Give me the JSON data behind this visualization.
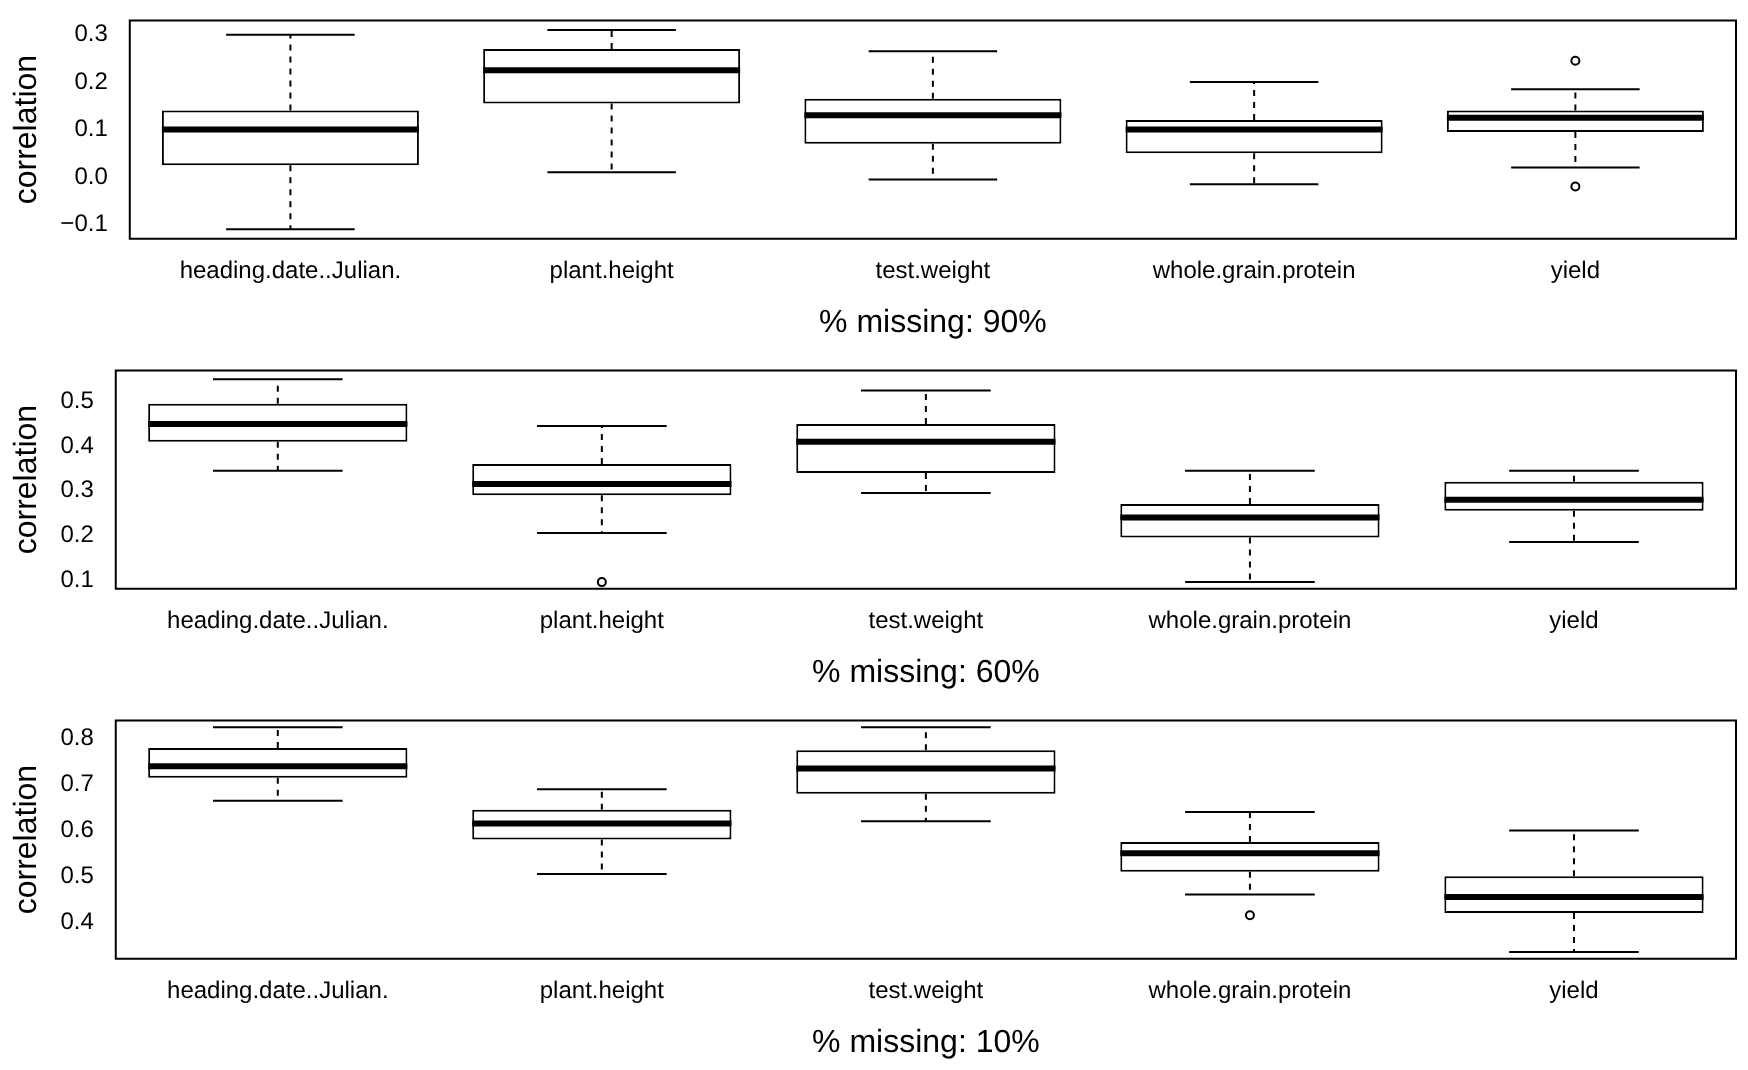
{
  "chart_data": [
    {
      "type": "box",
      "ylabel": "correlation",
      "xlabel": "% missing: 90%",
      "categories": [
        "heading.date..Julian.",
        "plant.height",
        "test.weight",
        "whole.grain.protein",
        "yield"
      ],
      "ylim": [
        -0.13,
        0.33
      ],
      "yticks": [
        {
          "value": -0.1,
          "label": "−0.1"
        },
        {
          "value": 0,
          "label": "0.0"
        },
        0.1,
        0.2,
        0.3
      ],
      "grid": false,
      "legend": false,
      "boxes": [
        {
          "low": -0.11,
          "q1": 0.025,
          "median": 0.1,
          "q3": 0.14,
          "high": 0.3
        },
        {
          "low": 0.01,
          "q1": 0.155,
          "median": 0.225,
          "q3": 0.27,
          "high": 0.31
        },
        {
          "low": -0.005,
          "q1": 0.07,
          "median": 0.13,
          "q3": 0.165,
          "high": 0.265
        },
        {
          "low": -0.015,
          "q1": 0.05,
          "median": 0.1,
          "q3": 0.12,
          "high": 0.2
        },
        {
          "low": 0.02,
          "q1": 0.095,
          "median": 0.125,
          "q3": 0.14,
          "high": 0.185,
          "outliers": [
            0.245,
            -0.02
          ]
        }
      ]
    },
    {
      "type": "box",
      "ylabel": "correlation",
      "xlabel": "% missing: 60%",
      "categories": [
        "heading.date..Julian.",
        "plant.height",
        "test.weight",
        "whole.grain.protein",
        "yield"
      ],
      "ylim": [
        0.08,
        0.57
      ],
      "yticks": [
        0.1,
        0.2,
        0.3,
        0.4,
        0.5
      ],
      "grid": false,
      "legend": false,
      "boxes": [
        {
          "low": 0.345,
          "q1": 0.41,
          "median": 0.45,
          "q3": 0.495,
          "high": 0.55
        },
        {
          "low": 0.205,
          "q1": 0.29,
          "median": 0.315,
          "q3": 0.36,
          "high": 0.445,
          "outliers": [
            0.095
          ]
        },
        {
          "low": 0.295,
          "q1": 0.34,
          "median": 0.41,
          "q3": 0.45,
          "high": 0.525
        },
        {
          "low": 0.095,
          "q1": 0.195,
          "median": 0.24,
          "q3": 0.27,
          "high": 0.345
        },
        {
          "low": 0.185,
          "q1": 0.255,
          "median": 0.28,
          "q3": 0.32,
          "high": 0.345
        }
      ]
    },
    {
      "type": "box",
      "ylabel": "correlation",
      "xlabel": "% missing: 10%",
      "categories": [
        "heading.date..Julian.",
        "plant.height",
        "test.weight",
        "whole.grain.protein",
        "yield"
      ],
      "ylim": [
        0.32,
        0.84
      ],
      "yticks": [
        0.4,
        0.5,
        0.6,
        0.7,
        0.8
      ],
      "grid": false,
      "legend": false,
      "boxes": [
        {
          "low": 0.665,
          "q1": 0.715,
          "median": 0.74,
          "q3": 0.78,
          "high": 0.825
        },
        {
          "low": 0.505,
          "q1": 0.58,
          "median": 0.615,
          "q3": 0.645,
          "high": 0.69
        },
        {
          "low": 0.62,
          "q1": 0.68,
          "median": 0.735,
          "q3": 0.775,
          "high": 0.825
        },
        {
          "low": 0.46,
          "q1": 0.51,
          "median": 0.55,
          "q3": 0.575,
          "high": 0.64,
          "outliers": [
            0.415
          ]
        },
        {
          "low": 0.335,
          "q1": 0.42,
          "median": 0.455,
          "q3": 0.5,
          "high": 0.6
        }
      ]
    }
  ]
}
